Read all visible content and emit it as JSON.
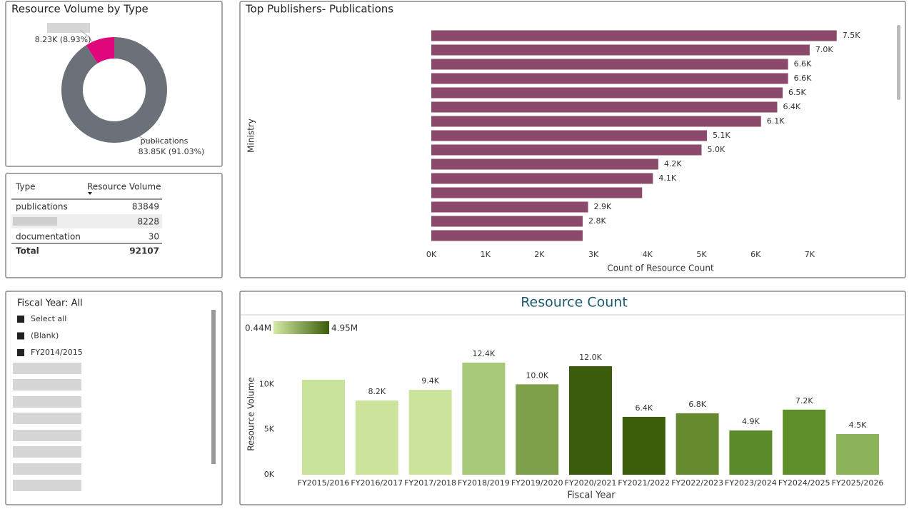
{
  "chart_data": [
    {
      "type": "donut",
      "title": "Resource Volume by Type",
      "categories": [
        "publications",
        null
      ],
      "values": [
        83850,
        8230
      ],
      "value_labels": [
        "83.85K (91.03%)",
        "8.23K (8.93%)"
      ],
      "colors": [
        "#6b7079",
        "#e0077d"
      ]
    },
    {
      "type": "hbar",
      "title": "Top Publishers- Publications",
      "y_label": "Ministry",
      "x_label": "Count of Resource Count",
      "categories": [
        null,
        null,
        null,
        null,
        null,
        null,
        null,
        null,
        null,
        null,
        null,
        null,
        null,
        null,
        null
      ],
      "values": [
        7500,
        7000,
        6600,
        6600,
        6500,
        6400,
        6100,
        5100,
        5000,
        4200,
        4100,
        3900,
        2900,
        2800,
        2800
      ],
      "value_labels": [
        "7.5K",
        "7.0K",
        "6.6K",
        "6.6K",
        "6.5K",
        "6.4K",
        "6.1K",
        "5.1K",
        "5.0K",
        "4.2K",
        "4.1K",
        null,
        "2.9K",
        "2.8K",
        null
      ],
      "color": "#8b4a6b",
      "xlim": [
        0,
        8000
      ],
      "xticks": [
        {
          "value": 0,
          "label": "0K"
        },
        {
          "value": 1000,
          "label": "1K"
        },
        {
          "value": 2000,
          "label": "2K"
        },
        {
          "value": 3000,
          "label": "3K"
        },
        {
          "value": 4000,
          "label": "4K"
        },
        {
          "value": 5000,
          "label": "5K"
        },
        {
          "value": 6000,
          "label": "6K"
        },
        {
          "value": 7000,
          "label": "7K"
        }
      ]
    },
    {
      "type": "bar",
      "title": "Resource Count",
      "y_label": "Resource Volume",
      "x_label": "Fiscal Year",
      "color_scale": [
        "0.44M",
        "4.95M"
      ],
      "categories": [
        "FY2015/2016",
        "FY2016/2017",
        "FY2017/2018",
        "FY2018/2019",
        "FY2019/2020",
        "FY2020/2021",
        "FY2021/2022",
        "FY2022/2023",
        "FY2023/2024",
        "FY2024/2025",
        "FY2025/2026"
      ],
      "values": [
        10500,
        8200,
        9400,
        12400,
        10000,
        12000,
        6400,
        6800,
        4900,
        7200,
        4500
      ],
      "value_labels": [
        null,
        "8.2K",
        "9.4K",
        "12.4K",
        "10.0K",
        "12.0K",
        "6.4K",
        "6.8K",
        "4.9K",
        "7.2K",
        "4.5K"
      ],
      "colors": [
        "#c9e29a",
        "#cbe39a",
        "#cbe39a",
        "#a9c97a",
        "#7fa04a",
        "#3b5c0a",
        "#3d5f0b",
        "#668a2e",
        "#5a8a2a",
        "#5f8f2a",
        "#8cb25a"
      ],
      "ylim": [
        0,
        15000
      ],
      "yticks": [
        {
          "value": 0,
          "label": "0K"
        },
        {
          "value": 5000,
          "label": "5K"
        },
        {
          "value": 10000,
          "label": "10K"
        }
      ]
    }
  ],
  "table": {
    "header": [
      "Type",
      "Resource Volume"
    ],
    "rows": [
      [
        "publications",
        83849
      ],
      [
        null,
        8228
      ],
      [
        "documentation",
        30
      ]
    ],
    "total": [
      "Total",
      92107
    ]
  },
  "slicer": {
    "title": "Fiscal Year: All",
    "items": [
      "Select all",
      "(Blank)",
      "FY2014/2015"
    ]
  }
}
